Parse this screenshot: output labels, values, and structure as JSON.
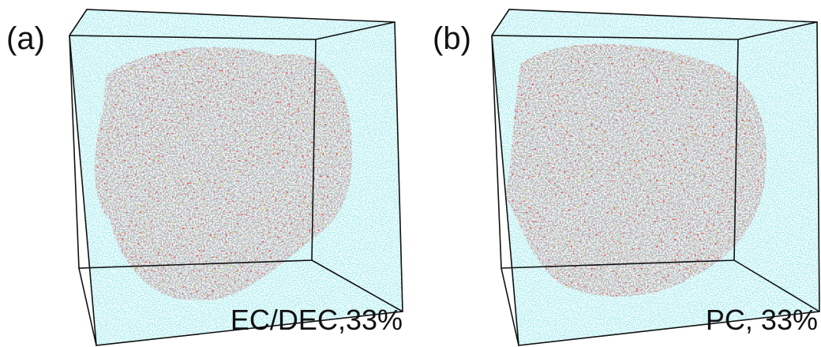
{
  "panels": [
    {
      "label": "(a)",
      "caption": "EC/DEC,33%"
    },
    {
      "label": "(b)",
      "caption": "PC, 33%"
    }
  ]
}
